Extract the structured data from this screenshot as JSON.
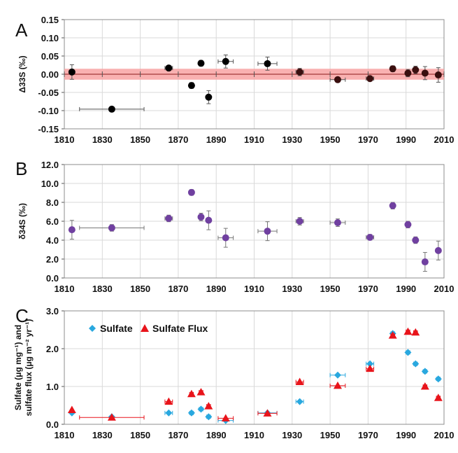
{
  "colors": {
    "panelA_points": "#000000",
    "panelA_points_late": "#3a0f0f",
    "panelA_band": "#f8a3a3",
    "panelA_zero_line": "#8a1a1a",
    "panelB_points": "#7040a0",
    "sulfate": "#29a8df",
    "sulfate_flux": "#e8141b",
    "grid": "#d9d9d9"
  },
  "chart_data": [
    {
      "panel": "A",
      "type": "scatter",
      "ylabel": "Δ33S (‰)",
      "xlim": [
        1810,
        2010
      ],
      "ylim": [
        -0.15,
        0.15
      ],
      "x_ticks": [
        "1810",
        "1830",
        "1850",
        "1870",
        "1890",
        "1910",
        "1930",
        "1950",
        "1970",
        "1990",
        "2010"
      ],
      "y_ticks": [
        "-0.15",
        "-0.10",
        "-0.05",
        "0.00",
        "0.05",
        "0.10",
        "0.15"
      ],
      "band": [
        -0.015,
        0.015
      ],
      "points": [
        {
          "x": 1814,
          "y": 0.006,
          "xerr": 0,
          "yerr": 0.02
        },
        {
          "x": 1835,
          "y": -0.096,
          "xerr": 17,
          "yerr": 0.006
        },
        {
          "x": 1865,
          "y": 0.017,
          "xerr": 2,
          "yerr": 0.006
        },
        {
          "x": 1877,
          "y": -0.031,
          "xerr": 1,
          "yerr": 0.008
        },
        {
          "x": 1882,
          "y": 0.03,
          "xerr": 1,
          "yerr": 0.008
        },
        {
          "x": 1886,
          "y": -0.063,
          "xerr": 1,
          "yerr": 0.018
        },
        {
          "x": 1895,
          "y": 0.035,
          "xerr": 4,
          "yerr": 0.018
        },
        {
          "x": 1917,
          "y": 0.029,
          "xerr": 5,
          "yerr": 0.018
        },
        {
          "x": 1934,
          "y": 0.006,
          "xerr": 2,
          "yerr": 0.01
        },
        {
          "x": 1954,
          "y": -0.015,
          "xerr": 4,
          "yerr": 0.006
        },
        {
          "x": 1971,
          "y": -0.012,
          "xerr": 2,
          "yerr": 0.005
        },
        {
          "x": 1983,
          "y": 0.015,
          "xerr": 1,
          "yerr": 0.008
        },
        {
          "x": 1991,
          "y": 0.003,
          "xerr": 1,
          "yerr": 0.01
        },
        {
          "x": 1995,
          "y": 0.012,
          "xerr": 1,
          "yerr": 0.01
        },
        {
          "x": 2000,
          "y": 0.003,
          "xerr": 1,
          "yerr": 0.018
        },
        {
          "x": 2007,
          "y": -0.002,
          "xerr": 1,
          "yerr": 0.02
        }
      ]
    },
    {
      "panel": "B",
      "type": "scatter",
      "ylabel": "δ34S (‰)",
      "xlim": [
        1810,
        2010
      ],
      "ylim": [
        0,
        12
      ],
      "x_ticks": [
        "1810",
        "1830",
        "1850",
        "1870",
        "1890",
        "1910",
        "1930",
        "1950",
        "1970",
        "1990",
        "2010"
      ],
      "y_ticks": [
        "0.0",
        "2.0",
        "4.0",
        "6.0",
        "8.0",
        "10.0",
        "12.0"
      ],
      "points": [
        {
          "x": 1814,
          "y": 5.1,
          "xerr": 0,
          "yerr": 1.0
        },
        {
          "x": 1835,
          "y": 5.3,
          "xerr": 17,
          "yerr": 0.35
        },
        {
          "x": 1865,
          "y": 6.3,
          "xerr": 2,
          "yerr": 0.35
        },
        {
          "x": 1877,
          "y": 9.05,
          "xerr": 1,
          "yerr": 0.3
        },
        {
          "x": 1882,
          "y": 6.45,
          "xerr": 1,
          "yerr": 0.4
        },
        {
          "x": 1886,
          "y": 6.1,
          "xerr": 1,
          "yerr": 1.0
        },
        {
          "x": 1895,
          "y": 4.25,
          "xerr": 4,
          "yerr": 1.0
        },
        {
          "x": 1917,
          "y": 4.95,
          "xerr": 5,
          "yerr": 1.0
        },
        {
          "x": 1934,
          "y": 6.0,
          "xerr": 2,
          "yerr": 0.4
        },
        {
          "x": 1954,
          "y": 5.85,
          "xerr": 4,
          "yerr": 0.4
        },
        {
          "x": 1971,
          "y": 4.3,
          "xerr": 2,
          "yerr": 0.3
        },
        {
          "x": 1983,
          "y": 7.65,
          "xerr": 1,
          "yerr": 0.35
        },
        {
          "x": 1991,
          "y": 5.65,
          "xerr": 1,
          "yerr": 0.35
        },
        {
          "x": 1995,
          "y": 4.0,
          "xerr": 1,
          "yerr": 0.35
        },
        {
          "x": 2000,
          "y": 1.7,
          "xerr": 1,
          "yerr": 1.0
        },
        {
          "x": 2007,
          "y": 2.9,
          "xerr": 1,
          "yerr": 1.0
        }
      ]
    },
    {
      "panel": "C",
      "type": "scatter",
      "ylabel": "Sulfate (μg mg⁻¹) and sulfate flux (μg m⁻² yr⁻¹)",
      "ylabel_lines": [
        "Sulfate (μg mg⁻¹) and",
        "sulfate flux (μg m⁻² yr⁻¹)"
      ],
      "xlim": [
        1810,
        2010
      ],
      "ylim": [
        0,
        3
      ],
      "x_ticks": [
        "1810",
        "1830",
        "1850",
        "1870",
        "1890",
        "1910",
        "1930",
        "1950",
        "1970",
        "1990",
        "2010"
      ],
      "y_ticks": [
        "0.0",
        "1.0",
        "2.0",
        "3.0"
      ],
      "legend_position": "top-left",
      "series": [
        {
          "name": "Sulfate",
          "marker": "diamond",
          "points": [
            {
              "x": 1814,
              "y": 0.3,
              "xerr": 0
            },
            {
              "x": 1835,
              "y": 0.2,
              "xerr": 0
            },
            {
              "x": 1865,
              "y": 0.3,
              "xerr": 2
            },
            {
              "x": 1877,
              "y": 0.3,
              "xerr": 1
            },
            {
              "x": 1882,
              "y": 0.4,
              "xerr": 1
            },
            {
              "x": 1886,
              "y": 0.2,
              "xerr": 1
            },
            {
              "x": 1895,
              "y": 0.1,
              "xerr": 4
            },
            {
              "x": 1917,
              "y": 0.3,
              "xerr": 5
            },
            {
              "x": 1934,
              "y": 0.6,
              "xerr": 2
            },
            {
              "x": 1954,
              "y": 1.3,
              "xerr": 4
            },
            {
              "x": 1971,
              "y": 1.6,
              "xerr": 2
            },
            {
              "x": 1983,
              "y": 2.4,
              "xerr": 1
            },
            {
              "x": 1991,
              "y": 1.9,
              "xerr": 1
            },
            {
              "x": 1995,
              "y": 1.6,
              "xerr": 1
            },
            {
              "x": 2000,
              "y": 1.4,
              "xerr": 1
            },
            {
              "x": 2007,
              "y": 1.2,
              "xerr": 1
            }
          ]
        },
        {
          "name": "Sulfate Flux",
          "marker": "triangle",
          "points": [
            {
              "x": 1814,
              "y": 0.38,
              "xerr": 0
            },
            {
              "x": 1835,
              "y": 0.18,
              "xerr": 17
            },
            {
              "x": 1865,
              "y": 0.6,
              "xerr": 2
            },
            {
              "x": 1877,
              "y": 0.8,
              "xerr": 1
            },
            {
              "x": 1882,
              "y": 0.85,
              "xerr": 1
            },
            {
              "x": 1886,
              "y": 0.48,
              "xerr": 1
            },
            {
              "x": 1895,
              "y": 0.16,
              "xerr": 4
            },
            {
              "x": 1917,
              "y": 0.29,
              "xerr": 5
            },
            {
              "x": 1934,
              "y": 1.12,
              "xerr": 2
            },
            {
              "x": 1954,
              "y": 1.02,
              "xerr": 4
            },
            {
              "x": 1971,
              "y": 1.47,
              "xerr": 2
            },
            {
              "x": 1983,
              "y": 2.35,
              "xerr": 1
            },
            {
              "x": 1991,
              "y": 2.45,
              "xerr": 1
            },
            {
              "x": 1995,
              "y": 2.43,
              "xerr": 1
            },
            {
              "x": 2000,
              "y": 1.0,
              "xerr": 1
            },
            {
              "x": 2007,
              "y": 0.7,
              "xerr": 1
            }
          ]
        }
      ]
    }
  ],
  "panel_labels": [
    "A",
    "B",
    "C"
  ]
}
